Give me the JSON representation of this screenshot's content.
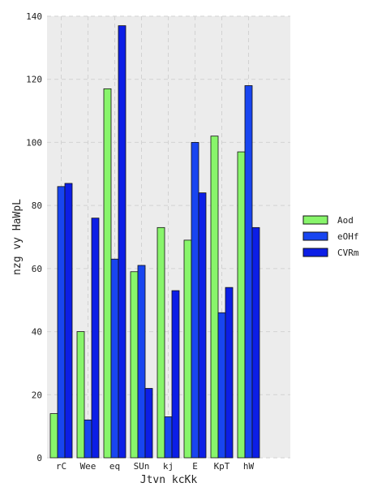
{
  "chart_data": {
    "type": "bar",
    "title": "",
    "xlabel": "Jtvn kcKk",
    "ylabel": "nzg  vy HaWpL",
    "categories": [
      "rC",
      "Wee",
      "eq",
      "SUn",
      "kj",
      "E",
      "KpT",
      "hW"
    ],
    "series": [
      {
        "name": "Aod",
        "color": "#88f56b",
        "values": [
          14,
          40,
          117,
          59,
          73,
          69,
          102,
          97
        ]
      },
      {
        "name": "eOHf",
        "color": "#1845f0",
        "values": [
          86,
          12,
          63,
          61,
          13,
          100,
          46,
          118
        ]
      },
      {
        "name": "CVRm",
        "color": "#0c1ee6",
        "values": [
          87,
          76,
          137,
          22,
          53,
          84,
          54,
          73
        ]
      }
    ],
    "ylim": [
      0,
      140
    ],
    "yticks": [
      "0",
      "20",
      "40",
      "60",
      "80",
      "100",
      "120",
      "140"
    ],
    "grid": true,
    "legend_position": "right",
    "background_color": "#ececec"
  }
}
